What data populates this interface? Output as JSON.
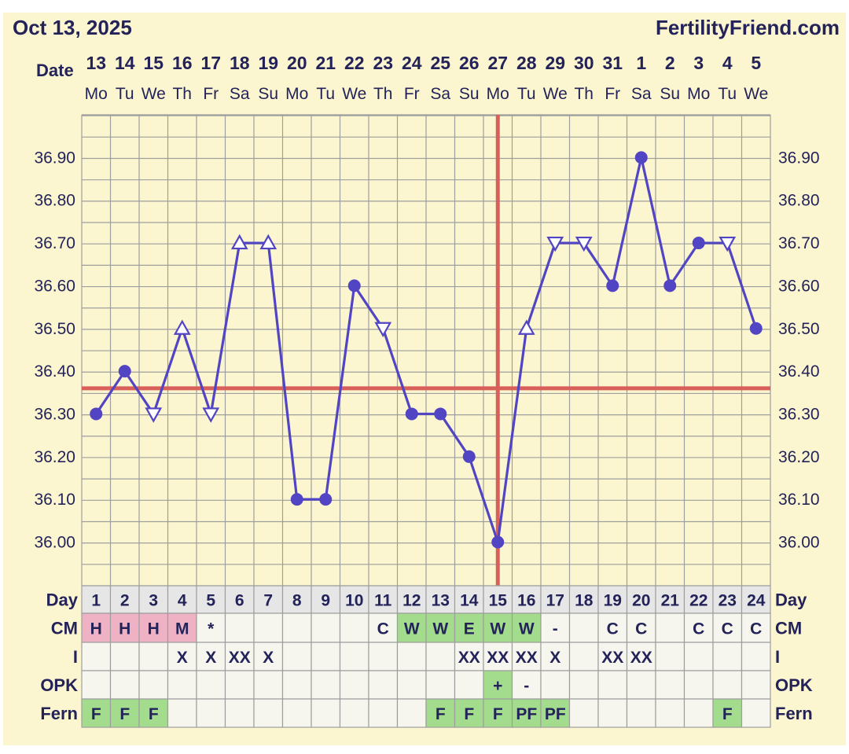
{
  "header": {
    "date": "Oct 13, 2025",
    "site": "FertilityFriend.com"
  },
  "labels": {
    "date": "Date",
    "day": "Day",
    "cm": "CM",
    "i": "I",
    "opk": "OPK",
    "fern": "Fern"
  },
  "colors": {
    "background": "#fbf6cf",
    "line": "#5245c4",
    "coverline": "#d9605a",
    "pink_cell": "#efb2c4",
    "green_cell": "#a2dc8c",
    "empty_cell": "#f6f6ef",
    "day_cell": "#e6e6e6",
    "grid": "#9e9e9e",
    "text": "#23235a"
  },
  "chart_data": {
    "type": "line",
    "x_dates": [
      "13",
      "14",
      "15",
      "16",
      "17",
      "18",
      "19",
      "20",
      "21",
      "22",
      "23",
      "24",
      "25",
      "26",
      "27",
      "28",
      "29",
      "30",
      "31",
      "1",
      "2",
      "3",
      "4",
      "5"
    ],
    "x_weekdays": [
      "Mo",
      "Tu",
      "We",
      "Th",
      "Fr",
      "Sa",
      "Su",
      "Mo",
      "Tu",
      "We",
      "Th",
      "Fr",
      "Sa",
      "Su",
      "Mo",
      "Tu",
      "We",
      "Th",
      "Fr",
      "Sa",
      "Su",
      "Mo",
      "Tu",
      "We"
    ],
    "cycle_days": [
      "1",
      "2",
      "3",
      "4",
      "5",
      "6",
      "7",
      "8",
      "9",
      "10",
      "11",
      "12",
      "13",
      "14",
      "15",
      "16",
      "17",
      "18",
      "19",
      "20",
      "21",
      "22",
      "23",
      "24"
    ],
    "series": [
      {
        "values": [
          36.3,
          36.4,
          36.3,
          36.5,
          36.3,
          36.7,
          36.7,
          36.1,
          36.1,
          36.6,
          36.5,
          36.3,
          36.3,
          36.2,
          36.0,
          36.5,
          36.7,
          36.7,
          36.6,
          36.9,
          36.6,
          36.7,
          36.7,
          36.5
        ],
        "markers": [
          "circle",
          "circle",
          "tri-down",
          "tri-up",
          "tri-down",
          "tri-up",
          "tri-up",
          "circle",
          "circle",
          "circle",
          "tri-down",
          "circle",
          "circle",
          "circle",
          "circle",
          "tri-up",
          "tri-down",
          "tri-down",
          "circle",
          "circle",
          "circle",
          "circle",
          "tri-down",
          "circle"
        ]
      }
    ],
    "y_ticks": [
      "36.00",
      "36.10",
      "36.20",
      "36.30",
      "36.40",
      "36.50",
      "36.60",
      "36.70",
      "36.80",
      "36.90"
    ],
    "ylim": [
      35.9,
      37.0
    ],
    "coverline": 36.36,
    "ovulation_day_index": 14,
    "grid": true
  },
  "rows": {
    "cm": [
      "H",
      "H",
      "H",
      "M",
      "*",
      "",
      "",
      "",
      "",
      "",
      "C",
      "W",
      "W",
      "E",
      "W",
      "W",
      "-",
      "",
      "C",
      "C",
      "",
      "C",
      "C",
      "C"
    ],
    "cm_colors": [
      "pink",
      "pink",
      "pink",
      "pink",
      "",
      "",
      "",
      "",
      "",
      "",
      "",
      "green",
      "green",
      "green",
      "green",
      "green",
      "",
      "",
      "",
      "",
      "",
      "",
      "",
      ""
    ],
    "i": [
      "",
      "",
      "",
      "X",
      "X",
      "XX",
      "X",
      "",
      "",
      "",
      "",
      "",
      "",
      "XX",
      "XX",
      "XX",
      "X",
      "",
      "XX",
      "XX",
      "",
      "",
      "",
      ""
    ],
    "opk": [
      "",
      "",
      "",
      "",
      "",
      "",
      "",
      "",
      "",
      "",
      "",
      "",
      "",
      "",
      "+",
      "-",
      "",
      "",
      "",
      "",
      "",
      "",
      "",
      ""
    ],
    "opk_colors": [
      "",
      "",
      "",
      "",
      "",
      "",
      "",
      "",
      "",
      "",
      "",
      "",
      "",
      "",
      "green",
      "",
      "",
      "",
      "",
      "",
      "",
      "",
      "",
      ""
    ],
    "fern": [
      "F",
      "F",
      "F",
      "",
      "",
      "",
      "",
      "",
      "",
      "",
      "",
      "",
      "F",
      "F",
      "F",
      "PF",
      "PF",
      "",
      "",
      "",
      "",
      "",
      "F",
      ""
    ],
    "fern_colors": [
      "green",
      "green",
      "green",
      "",
      "",
      "",
      "",
      "",
      "",
      "",
      "",
      "",
      "green",
      "green",
      "green",
      "green",
      "green",
      "",
      "",
      "",
      "",
      "",
      "green",
      ""
    ]
  }
}
